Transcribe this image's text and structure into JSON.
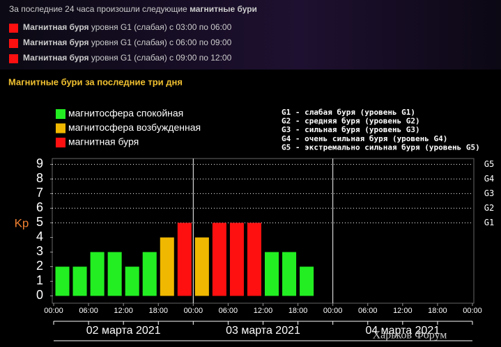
{
  "header": {
    "intro": "За последние 24 часа произошли следующие",
    "intro_bold": "магнитные бури",
    "events": [
      {
        "bold": "Магнитная буря",
        "text": "уровня G1 (слабая) с 03:00 по 06:00"
      },
      {
        "bold": "Магнитная буря",
        "text": "уровня G1 (слабая) с 06:00 по 09:00"
      },
      {
        "bold": "Магнитная буря",
        "text": "уровня G1 (слабая) с 09:00 по 12:00"
      }
    ]
  },
  "section_title": "Магнитные бури за последние три дня",
  "watermark": "Харьков Форум",
  "chart_data": {
    "type": "bar",
    "legend": [
      {
        "label": "магнитосфера спокойная",
        "color": "#22ee22"
      },
      {
        "label": "магнитосфера возбужденная",
        "color": "#f0b800"
      },
      {
        "label": "магнитная буря",
        "color": "#ff1010"
      }
    ],
    "g_notes": [
      "G1 - слабая буря (уровень G1)",
      "G2 - средняя буря (уровень G2)",
      "G3 - сильная буря (уровень G3)",
      "G4 - очень сильная буря (уровень G4)",
      "G5 - экстремально сильная буря (уровень G5)"
    ],
    "ylabel": "Kp",
    "x": [
      1.5,
      4.5,
      7.5,
      10.5,
      13.5,
      16.5,
      19.5,
      22.5,
      25.5,
      28.5,
      31.5,
      34.5,
      37.5,
      40.5,
      43.5
    ],
    "values": [
      2,
      2,
      3,
      3,
      2,
      3,
      4,
      5,
      4,
      5,
      5,
      5,
      3,
      3,
      2
    ],
    "colors": [
      "#22ee22",
      "#22ee22",
      "#22ee22",
      "#22ee22",
      "#22ee22",
      "#22ee22",
      "#f0b800",
      "#ff1010",
      "#f0b800",
      "#ff1010",
      "#ff1010",
      "#ff1010",
      "#22ee22",
      "#22ee22",
      "#22ee22"
    ],
    "xlim": [
      0,
      72
    ],
    "xticks": [
      {
        "value": 0,
        "label": "00:00"
      },
      {
        "value": 6,
        "label": "06:00"
      },
      {
        "value": 12,
        "label": "12:00"
      },
      {
        "value": 18,
        "label": "18:00"
      },
      {
        "value": 24,
        "label": "00:00"
      },
      {
        "value": 30,
        "label": "06:00"
      },
      {
        "value": 36,
        "label": "12:00"
      },
      {
        "value": 42,
        "label": "18:00"
      },
      {
        "value": 48,
        "label": "00:00"
      },
      {
        "value": 54,
        "label": "06:00"
      },
      {
        "value": 60,
        "label": "12:00"
      },
      {
        "value": 66,
        "label": "18:00"
      },
      {
        "value": 72,
        "label": "00:00"
      }
    ],
    "days": [
      "02 марта 2021",
      "03 марта 2021",
      "04 марта 2021"
    ],
    "day_boundaries": [
      24,
      48
    ],
    "ylim": [
      -0.5,
      9.4
    ],
    "yticks": [
      0,
      1,
      2,
      3,
      4,
      5,
      6,
      7,
      8,
      9
    ],
    "y2lim": [
      -0.5,
      9.4
    ],
    "y2ticks": [
      {
        "value": 5,
        "label": "G1"
      },
      {
        "value": 6,
        "label": "G2"
      },
      {
        "value": 7,
        "label": "G3"
      },
      {
        "value": 8,
        "label": "G4"
      },
      {
        "value": 9,
        "label": "G5"
      }
    ]
  }
}
